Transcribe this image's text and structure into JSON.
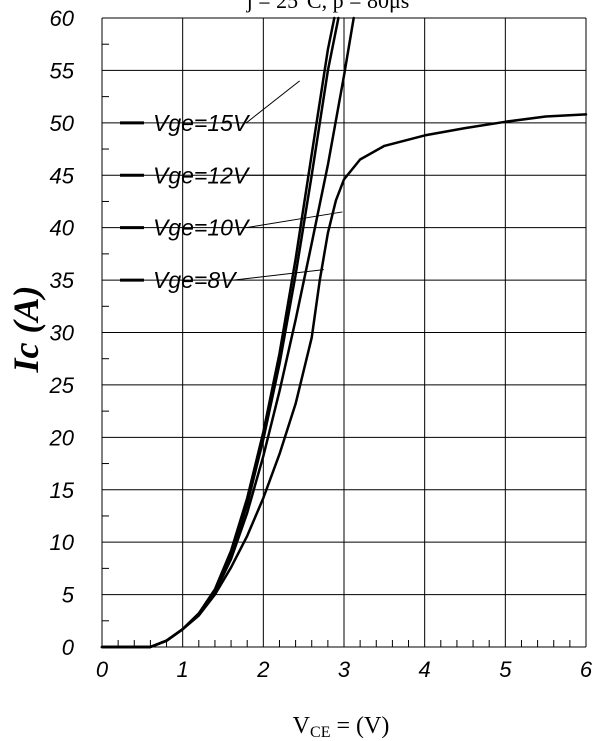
{
  "chart_data": {
    "type": "line",
    "title": "j = 25°C, p = 80μs",
    "xlabel_main": "V",
    "xlabel_sub": "CE",
    "xlabel_rest": " = (V)",
    "ylabel": "Ic  (A)",
    "xlim": [
      0,
      6
    ],
    "ylim": [
      0,
      60
    ],
    "xticks": [
      "0",
      "1",
      "2",
      "3",
      "4",
      "5",
      "6"
    ],
    "yticks": [
      "0",
      "5",
      "10",
      "15",
      "20",
      "25",
      "30",
      "35",
      "40",
      "45",
      "50",
      "55",
      "60"
    ],
    "grid": true,
    "legend_placement": "upper-left",
    "series": [
      {
        "name": "Vge=15V",
        "points": [
          [
            0,
            0
          ],
          [
            0.6,
            0
          ],
          [
            0.8,
            0.6
          ],
          [
            1.0,
            1.7
          ],
          [
            1.2,
            3.2
          ],
          [
            1.4,
            5.5
          ],
          [
            1.6,
            9.2
          ],
          [
            1.8,
            14.2
          ],
          [
            2.0,
            20.5
          ],
          [
            2.2,
            28
          ],
          [
            2.4,
            37
          ],
          [
            2.6,
            47
          ],
          [
            2.8,
            57
          ],
          [
            2.88,
            60
          ]
        ]
      },
      {
        "name": "Vge=12V",
        "points": [
          [
            0,
            0
          ],
          [
            0.6,
            0
          ],
          [
            0.8,
            0.6
          ],
          [
            1.0,
            1.7
          ],
          [
            1.2,
            3.2
          ],
          [
            1.4,
            5.3
          ],
          [
            1.6,
            8.8
          ],
          [
            1.8,
            13.6
          ],
          [
            2.0,
            19.8
          ],
          [
            2.2,
            27
          ],
          [
            2.4,
            35.5
          ],
          [
            2.6,
            45
          ],
          [
            2.8,
            55
          ],
          [
            2.93,
            60
          ]
        ]
      },
      {
        "name": "Vge=10V",
        "points": [
          [
            0,
            0
          ],
          [
            0.6,
            0
          ],
          [
            0.8,
            0.6
          ],
          [
            1.0,
            1.7
          ],
          [
            1.2,
            3.2
          ],
          [
            1.4,
            5.2
          ],
          [
            1.6,
            8.4
          ],
          [
            1.8,
            12.8
          ],
          [
            2.0,
            18.2
          ],
          [
            2.2,
            24.4
          ],
          [
            2.4,
            31.2
          ],
          [
            2.6,
            38.5
          ],
          [
            2.8,
            46
          ],
          [
            3.0,
            54.5
          ],
          [
            3.12,
            60
          ]
        ]
      },
      {
        "name": "Vge=8V",
        "points": [
          [
            0,
            0
          ],
          [
            0.6,
            0
          ],
          [
            0.8,
            0.6
          ],
          [
            1.0,
            1.7
          ],
          [
            1.2,
            3.0
          ],
          [
            1.4,
            5.0
          ],
          [
            1.6,
            7.6
          ],
          [
            1.8,
            10.6
          ],
          [
            2.0,
            14.2
          ],
          [
            2.2,
            18.4
          ],
          [
            2.4,
            23.2
          ],
          [
            2.6,
            29.5
          ],
          [
            2.7,
            35
          ],
          [
            2.8,
            39.5
          ],
          [
            2.9,
            42.6
          ],
          [
            3.0,
            44.6
          ],
          [
            3.2,
            46.5
          ],
          [
            3.5,
            47.8
          ],
          [
            4.0,
            48.8
          ],
          [
            4.5,
            49.5
          ],
          [
            5.0,
            50.1
          ],
          [
            5.5,
            50.6
          ],
          [
            6.0,
            50.8
          ]
        ]
      }
    ]
  }
}
